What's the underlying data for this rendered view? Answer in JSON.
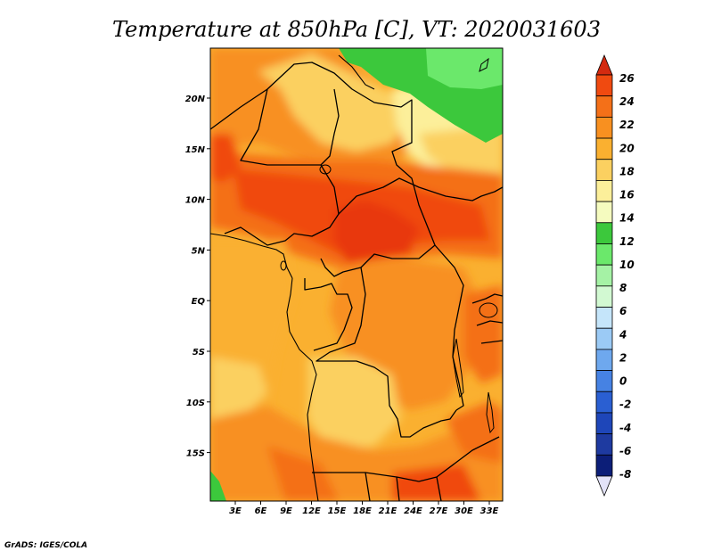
{
  "title": "Temperature at 850hPa [C], VT: 2020031603",
  "credit": "GrADS: IGES/COLA",
  "map": {
    "x_ticks": [
      "3E",
      "6E",
      "9E",
      "12E",
      "15E",
      "18E",
      "21E",
      "24E",
      "27E",
      "30E",
      "33E"
    ],
    "y_ticks": [
      "20N",
      "15N",
      "10N",
      "5N",
      "EQ",
      "5S",
      "10S",
      "15S"
    ]
  },
  "colorbar": {
    "labels": [
      "26",
      "24",
      "22",
      "20",
      "18",
      "16",
      "14",
      "12",
      "10",
      "8",
      "6",
      "4",
      "2",
      "0",
      "-2",
      "-4",
      "-6",
      "-8"
    ],
    "colors": [
      "#d42a10",
      "#f04a10",
      "#f47018",
      "#f89020",
      "#fab030",
      "#fbd060",
      "#fcef9a",
      "#f5fbbf",
      "#3cc83c",
      "#6be86b",
      "#a5f2a5",
      "#d2f9d2",
      "#c5e5fa",
      "#9bcaf5",
      "#6ea8ee",
      "#4682e3",
      "#2a5fd2",
      "#1e46b9",
      "#1e3aa0",
      "#0c1e78",
      "#e3e3f8"
    ]
  }
}
